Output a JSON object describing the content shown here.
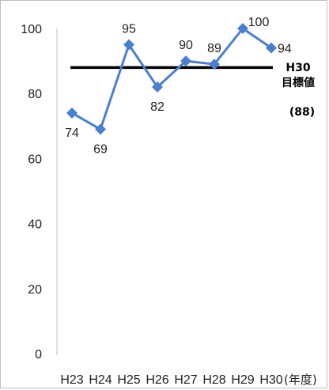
{
  "chart_data": {
    "type": "line",
    "categories": [
      "H23",
      "H24",
      "H25",
      "H26",
      "H27",
      "H28",
      "H29",
      "H30"
    ],
    "series": [
      {
        "values": [
          74,
          69,
          95,
          82,
          90,
          89,
          100,
          94
        ]
      }
    ],
    "ylim": [
      0,
      100
    ],
    "yticks": [
      "0",
      "20",
      "40",
      "60",
      "80",
      "100"
    ],
    "x_unit": "(年度)",
    "target": {
      "value": 88,
      "label_line1": "H30",
      "label_line2": "目標値",
      "label_value": "(88)"
    },
    "colors": {
      "series": "#4a7fd0",
      "target": "#000000"
    },
    "grid": false
  }
}
